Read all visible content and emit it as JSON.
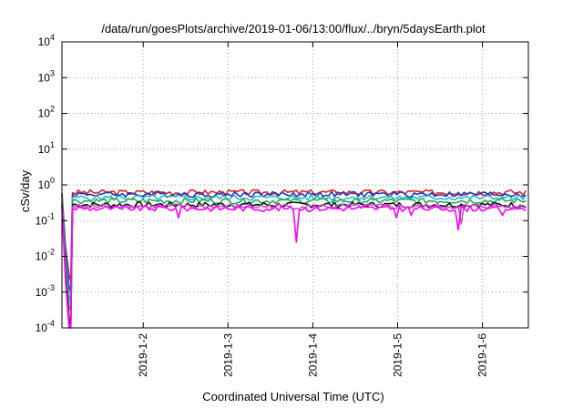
{
  "chart_data": {
    "type": "line",
    "title": "/data/run/goesPlots/archive/2019-01-06/13:00/flux/../bryn/5daysEarth.plot",
    "xlabel": "Coordinated Universal Time (UTC)",
    "ylabel": "cSv/day",
    "y_scale": "log",
    "ylim": [
      0.0001,
      10000
    ],
    "y_ticks": [
      {
        "value": 0.0001,
        "base": "10",
        "exp": "-4"
      },
      {
        "value": 0.001,
        "base": "10",
        "exp": "-3"
      },
      {
        "value": 0.01,
        "base": "10",
        "exp": "-2"
      },
      {
        "value": 0.1,
        "base": "10",
        "exp": "-1"
      },
      {
        "value": 1,
        "base": "10",
        "exp": "0"
      },
      {
        "value": 10,
        "base": "10",
        "exp": "1"
      },
      {
        "value": 100,
        "base": "10",
        "exp": "2"
      },
      {
        "value": 1000,
        "base": "10",
        "exp": "3"
      },
      {
        "value": 10000,
        "base": "10",
        "exp": "4"
      }
    ],
    "xlim": [
      "2019-01-01T01:00",
      "2019-01-06T13:00"
    ],
    "x_ticks": [
      {
        "value": "2019-01-02T00:00",
        "label": "2019-1-2"
      },
      {
        "value": "2019-01-03T00:00",
        "label": "2019-1-3"
      },
      {
        "value": "2019-01-04T00:00",
        "label": "2019-1-4"
      },
      {
        "value": "2019-01-05T00:00",
        "label": "2019-1-5"
      },
      {
        "value": "2019-01-06T00:00",
        "label": "2019-1-6"
      }
    ],
    "grid": true,
    "legend": "none",
    "series": [
      {
        "color": "#dd2222",
        "level": 0.62,
        "points": [
          [
            "2019-01-01T01:00",
            0.6
          ],
          [
            "2019-01-01T02:00",
            0.02
          ],
          [
            "2019-01-01T03:00",
            0.003
          ],
          [
            "2019-01-01T03:30",
            0.002
          ],
          [
            "2019-01-01T04:00",
            0.6
          ]
        ],
        "dips": []
      },
      {
        "color": "#2233bb",
        "level": 0.55,
        "points": [
          [
            "2019-01-01T01:00",
            0.55
          ],
          [
            "2019-01-01T02:00",
            0.015
          ],
          [
            "2019-01-01T03:00",
            0.0015
          ],
          [
            "2019-01-01T03:30",
            0.001
          ],
          [
            "2019-01-01T04:00",
            0.55
          ]
        ],
        "dips": []
      },
      {
        "color": "#22bbcc",
        "level": 0.44,
        "points": [
          [
            "2019-01-01T01:00",
            0.45
          ],
          [
            "2019-01-01T02:00",
            0.01
          ],
          [
            "2019-01-01T03:00",
            0.0008
          ],
          [
            "2019-01-01T03:30",
            0.0005
          ],
          [
            "2019-01-01T04:00",
            0.44
          ]
        ],
        "dips": []
      },
      {
        "color": "#22aa55",
        "level": 0.36,
        "points": [
          [
            "2019-01-01T01:00",
            0.36
          ],
          [
            "2019-01-01T02:00",
            0.006
          ],
          [
            "2019-01-01T03:00",
            0.0004
          ],
          [
            "2019-01-01T03:30",
            0.0003
          ],
          [
            "2019-01-01T04:00",
            0.36
          ]
        ],
        "dips": []
      },
      {
        "color": "#111111",
        "level": 0.28,
        "points": [
          [
            "2019-01-01T01:00",
            0.3
          ],
          [
            "2019-01-01T02:00",
            0.004
          ],
          [
            "2019-01-01T03:00",
            0.0002
          ],
          [
            "2019-01-01T03:30",
            0.0001
          ],
          [
            "2019-01-01T04:00",
            0.28
          ]
        ],
        "dips": []
      },
      {
        "color": "#bb55bb",
        "level": 0.25,
        "points": [
          [
            "2019-01-01T01:00",
            0.27
          ],
          [
            "2019-01-01T02:00",
            0.003
          ],
          [
            "2019-01-01T03:00",
            0.00012
          ],
          [
            "2019-01-01T03:30",
            0.0001
          ],
          [
            "2019-01-01T04:00",
            0.25
          ]
        ],
        "dips": [
          [
            "2019-01-05T18:00",
            0.08
          ]
        ]
      },
      {
        "color": "#ff00ff",
        "level": 0.22,
        "points": [
          [
            "2019-01-01T01:00",
            0.25
          ],
          [
            "2019-01-01T02:00",
            0.002
          ],
          [
            "2019-01-01T03:00",
            0.0001
          ],
          [
            "2019-01-01T03:30",
            0.0001
          ],
          [
            "2019-01-01T04:00",
            0.22
          ]
        ],
        "dips": [
          [
            "2019-01-02T10:00",
            0.12
          ],
          [
            "2019-01-03T19:00",
            0.025
          ],
          [
            "2019-01-05T00:00",
            0.12
          ],
          [
            "2019-01-05T04:00",
            0.14
          ],
          [
            "2019-01-05T17:00",
            0.055
          ],
          [
            "2019-01-06T06:00",
            0.14
          ]
        ]
      }
    ]
  }
}
